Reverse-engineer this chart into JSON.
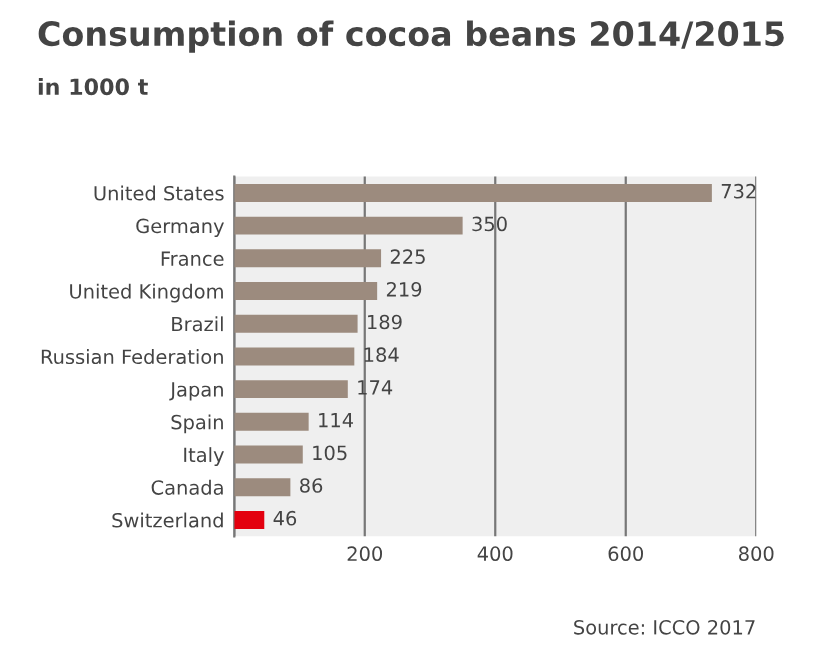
{
  "chart_data": {
    "type": "bar",
    "orientation": "horizontal",
    "title": "Consumption of cocoa beans 2014/2015",
    "subtitle": "in 1000 t",
    "categories": [
      "United States",
      "Germany",
      "France",
      "United Kingdom",
      "Brazil",
      "Russian Federation",
      "Japan",
      "Spain",
      "Italy",
      "Canada",
      "Switzerland"
    ],
    "values": [
      732,
      350,
      225,
      219,
      189,
      184,
      174,
      114,
      105,
      86,
      46
    ],
    "colors": [
      "#9c8b7e",
      "#9c8b7e",
      "#9c8b7e",
      "#9c8b7e",
      "#9c8b7e",
      "#9c8b7e",
      "#9c8b7e",
      "#9c8b7e",
      "#9c8b7e",
      "#9c8b7e",
      "#e3000f"
    ],
    "xlim": [
      0,
      800
    ],
    "xticks": [
      {
        "value": 0,
        "label": null
      },
      200,
      400,
      600,
      800
    ],
    "grid": "x",
    "data_labels": true,
    "annotations": [
      "Source: ICCO 2017"
    ]
  }
}
